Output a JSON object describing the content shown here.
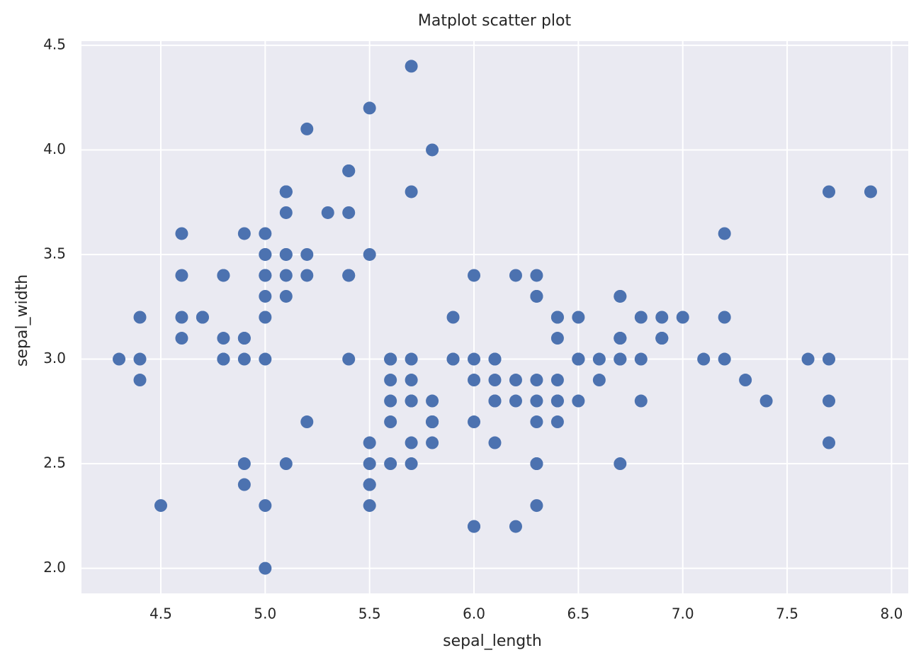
{
  "chart_data": {
    "type": "scatter",
    "title": "Matplot scatter plot",
    "x_label": "sepal_length",
    "y_label": "sepal_width",
    "x": [
      5.1,
      4.9,
      4.7,
      4.6,
      5.0,
      5.4,
      4.6,
      5.0,
      4.4,
      4.9,
      5.4,
      4.8,
      4.8,
      4.3,
      5.8,
      5.7,
      5.4,
      5.1,
      5.7,
      5.1,
      5.4,
      5.1,
      4.6,
      5.1,
      4.8,
      5.0,
      5.0,
      5.2,
      5.2,
      4.7,
      4.8,
      5.4,
      5.2,
      5.5,
      4.9,
      5.0,
      5.5,
      4.9,
      4.4,
      5.1,
      5.0,
      4.5,
      4.4,
      5.0,
      5.1,
      4.8,
      5.1,
      4.6,
      5.3,
      5.0,
      7.0,
      6.4,
      6.9,
      5.5,
      6.5,
      5.7,
      6.3,
      4.9,
      6.6,
      5.2,
      5.0,
      5.9,
      6.0,
      6.1,
      5.6,
      6.7,
      5.6,
      5.8,
      6.2,
      5.6,
      5.9,
      6.1,
      6.3,
      6.1,
      6.4,
      6.6,
      6.8,
      6.7,
      6.0,
      5.7,
      5.5,
      5.5,
      5.8,
      6.0,
      5.4,
      6.0,
      6.7,
      6.3,
      5.6,
      5.5,
      5.5,
      6.1,
      5.8,
      5.0,
      5.6,
      5.7,
      5.7,
      6.2,
      5.1,
      5.7,
      6.3,
      5.8,
      7.1,
      6.3,
      6.5,
      7.6,
      4.9,
      7.3,
      6.7,
      7.2,
      6.5,
      6.4,
      6.8,
      5.7,
      5.8,
      6.4,
      6.5,
      7.7,
      7.7,
      6.0,
      6.9,
      5.6,
      7.7,
      6.3,
      6.7,
      7.2,
      6.2,
      6.1,
      6.4,
      7.2,
      7.4,
      7.9,
      6.4,
      6.3,
      6.1,
      7.7,
      6.3,
      6.4,
      6.0,
      6.9,
      6.7,
      6.9,
      5.8,
      6.8,
      6.7,
      6.7,
      6.3,
      6.5,
      6.2,
      5.9
    ],
    "values": [
      3.5,
      3.0,
      3.2,
      3.1,
      3.6,
      3.9,
      3.4,
      3.4,
      2.9,
      3.1,
      3.7,
      3.4,
      3.0,
      3.0,
      4.0,
      4.4,
      3.9,
      3.5,
      3.8,
      3.8,
      3.4,
      3.7,
      3.6,
      3.3,
      3.4,
      3.0,
      3.4,
      3.5,
      3.4,
      3.2,
      3.1,
      3.4,
      4.1,
      4.2,
      3.1,
      3.2,
      3.5,
      3.6,
      3.0,
      3.4,
      3.5,
      2.3,
      3.2,
      3.5,
      3.8,
      3.0,
      3.8,
      3.2,
      3.7,
      3.3,
      3.2,
      3.2,
      3.1,
      2.3,
      2.8,
      2.8,
      3.3,
      2.4,
      2.9,
      2.7,
      2.0,
      3.0,
      2.2,
      2.9,
      2.9,
      3.1,
      3.0,
      2.7,
      2.2,
      2.5,
      3.2,
      2.8,
      2.5,
      2.8,
      2.9,
      3.0,
      2.8,
      3.0,
      2.9,
      2.6,
      2.4,
      2.4,
      2.7,
      2.7,
      3.0,
      3.4,
      3.1,
      2.3,
      3.0,
      2.5,
      2.6,
      3.0,
      2.6,
      2.3,
      2.7,
      3.0,
      2.9,
      2.9,
      2.5,
      2.8,
      3.3,
      2.7,
      3.0,
      2.9,
      3.0,
      3.0,
      2.5,
      2.9,
      2.5,
      3.6,
      3.2,
      2.7,
      3.0,
      2.5,
      2.8,
      3.2,
      3.0,
      3.8,
      2.6,
      2.2,
      3.2,
      2.8,
      2.8,
      2.7,
      3.3,
      3.2,
      2.8,
      3.0,
      2.8,
      3.0,
      2.8,
      3.8,
      2.8,
      2.8,
      2.6,
      3.0,
      3.4,
      3.1,
      3.0,
      3.1,
      3.1,
      3.1,
      2.7,
      3.2,
      3.3,
      3.0,
      2.5,
      3.0,
      3.4,
      3.0
    ],
    "color": "#4c72b0",
    "xlim": [
      4.12,
      8.08
    ],
    "ylim": [
      1.88,
      4.52
    ],
    "xticks": [
      4.5,
      {
        "value": 5,
        "label": "5.0"
      },
      5.5,
      {
        "value": 6,
        "label": "6.0"
      },
      6.5,
      {
        "value": 7,
        "label": "7.0"
      },
      7.5,
      {
        "value": 8,
        "label": "8.0"
      }
    ],
    "yticks": [
      {
        "value": 2,
        "label": "2.0"
      },
      2.5,
      {
        "value": 3,
        "label": "3.0"
      },
      3.5,
      {
        "value": 4,
        "label": "4.0"
      },
      4.5
    ],
    "grid": true
  }
}
